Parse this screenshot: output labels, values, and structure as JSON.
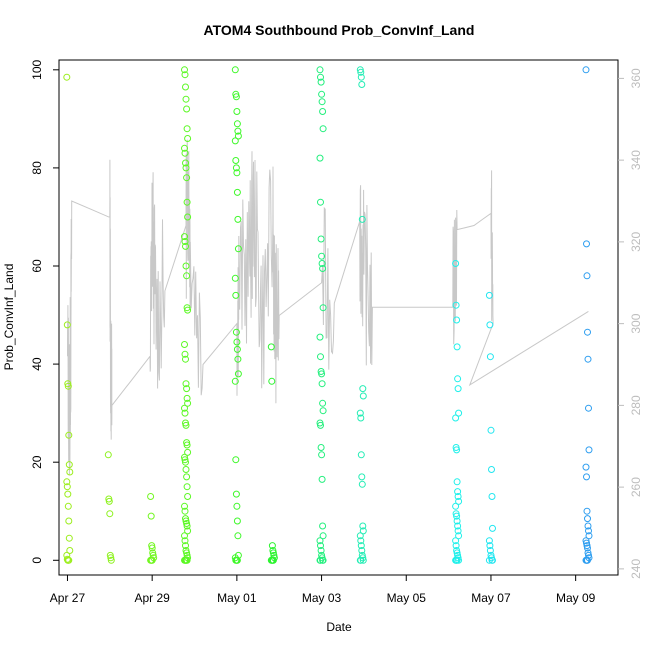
{
  "chart_data": {
    "type": "scatter",
    "title": "ATOM4 Southbound Prob_ConvInf_Land",
    "xlabel": "Date",
    "ylabel": "Prob_ConvInf_Land",
    "xlim": [
      -0.2,
      13.0
    ],
    "ylim": [
      -3,
      102
    ],
    "y2lim": [
      238.5,
      364.5
    ],
    "x_ticks": [
      {
        "label": "Apr 27",
        "value": 0
      },
      {
        "label": "Apr 29",
        "value": 2
      },
      {
        "label": "May 01",
        "value": 4
      },
      {
        "label": "May 03",
        "value": 6
      },
      {
        "label": "May 05",
        "value": 8
      },
      {
        "label": "May 07",
        "value": 10
      },
      {
        "label": "May 09",
        "value": 12
      }
    ],
    "y_ticks": [
      0,
      20,
      40,
      60,
      80,
      100
    ],
    "y2_ticks": [
      240,
      260,
      280,
      300,
      320,
      340,
      360
    ],
    "grid": false,
    "legend": "none",
    "colors": {
      "altitude_line": "#c8c8c8",
      "axes": "#000000",
      "right_axis": "#bdbdbd"
    },
    "series": [
      {
        "color": "#9cee1e",
        "x": 0.02,
        "y": [
          98.5,
          48,
          36,
          35.5,
          25.5,
          19.5,
          18,
          16,
          15,
          13.5,
          11,
          8,
          4.5,
          2,
          1,
          0.2,
          0,
          0,
          0
        ]
      },
      {
        "color": "#8ef21f",
        "x": 1.0,
        "y": [
          21.5,
          12.5,
          12,
          9.5,
          1,
          0.5,
          0
        ]
      },
      {
        "color": "#73f622",
        "x": 2.0,
        "y": [
          13,
          9,
          3,
          2.5,
          1.5,
          1,
          0.5,
          0,
          0,
          0,
          0
        ]
      },
      {
        "color": "#5cf824",
        "x": 2.8,
        "y": [
          100,
          99,
          96.5,
          94,
          92,
          88,
          86,
          84,
          83,
          81,
          80,
          78,
          73,
          70,
          66,
          65,
          64,
          60,
          58,
          51.5,
          51,
          44,
          42,
          41,
          36,
          35,
          33,
          32,
          31,
          30,
          28,
          27.5,
          24,
          23.5,
          22,
          21,
          20.5,
          20,
          18.5,
          17,
          15,
          13,
          11,
          10,
          8.5,
          8,
          7.5,
          7,
          6,
          5,
          4,
          3,
          2,
          1.5,
          1,
          0.5,
          0,
          0,
          0,
          0,
          0,
          0
        ]
      },
      {
        "color": "#3ff82a",
        "x": 4.0,
        "y": [
          100,
          95,
          94.5,
          91.5,
          89,
          87.5,
          86.5,
          85.5,
          81.5,
          80,
          79,
          75,
          69.5,
          63.5,
          57.5,
          54,
          46.5,
          44.5,
          43,
          41,
          38,
          36.5,
          20.5,
          13.5,
          11,
          8,
          5,
          1,
          0.5,
          0,
          0,
          0,
          0
        ]
      },
      {
        "color": "#2df431",
        "x": 4.85,
        "y": [
          43.5,
          36.5,
          3,
          2,
          1.5,
          1,
          0.5,
          0,
          0,
          0,
          0,
          0
        ]
      },
      {
        "color": "#23ef7d",
        "x": 6.0,
        "y": [
          100,
          98.5,
          97.5,
          95,
          93.5,
          91.5,
          88,
          82,
          73,
          65.5,
          62,
          60.5,
          59.5,
          51.5,
          45.5,
          41.5,
          38.5,
          38,
          36,
          32,
          30.5,
          28,
          27.5,
          23,
          21.5,
          16.5,
          7,
          5,
          4,
          3,
          2,
          1,
          0.5,
          0,
          0,
          0,
          0
        ]
      },
      {
        "color": "#25edb5",
        "x": 6.95,
        "y": [
          100,
          99.5,
          98.5,
          97,
          69.5,
          35,
          33.5,
          30,
          29,
          21.5,
          17,
          15.5,
          7,
          6,
          5,
          4,
          3,
          2,
          1,
          0.5,
          0,
          0,
          0
        ]
      },
      {
        "color": "#20f0ea",
        "x": 9.2,
        "y": [
          60.5,
          52,
          49,
          43.5,
          37,
          35,
          30,
          29,
          23,
          22.5,
          16,
          14,
          13,
          12,
          11,
          9.5,
          9,
          8,
          7,
          6,
          5,
          4,
          3,
          2,
          1.5,
          1,
          0.5,
          0,
          0,
          0,
          0,
          0
        ]
      },
      {
        "color": "#22e6f0",
        "x": 10.0,
        "y": [
          54,
          48,
          41.5,
          26.5,
          18.5,
          13,
          6.5,
          4,
          3,
          2,
          1,
          0.5,
          0,
          0,
          0
        ]
      },
      {
        "color": "#2e9ef0",
        "x": 12.28,
        "y": [
          100,
          64.5,
          58,
          46.5,
          41,
          31,
          22.5,
          19,
          17,
          10,
          8.5,
          7,
          6,
          5,
          4,
          3.5,
          3,
          2.5,
          1.5,
          1,
          0.5,
          0,
          0,
          0,
          0
        ]
      }
    ]
  }
}
